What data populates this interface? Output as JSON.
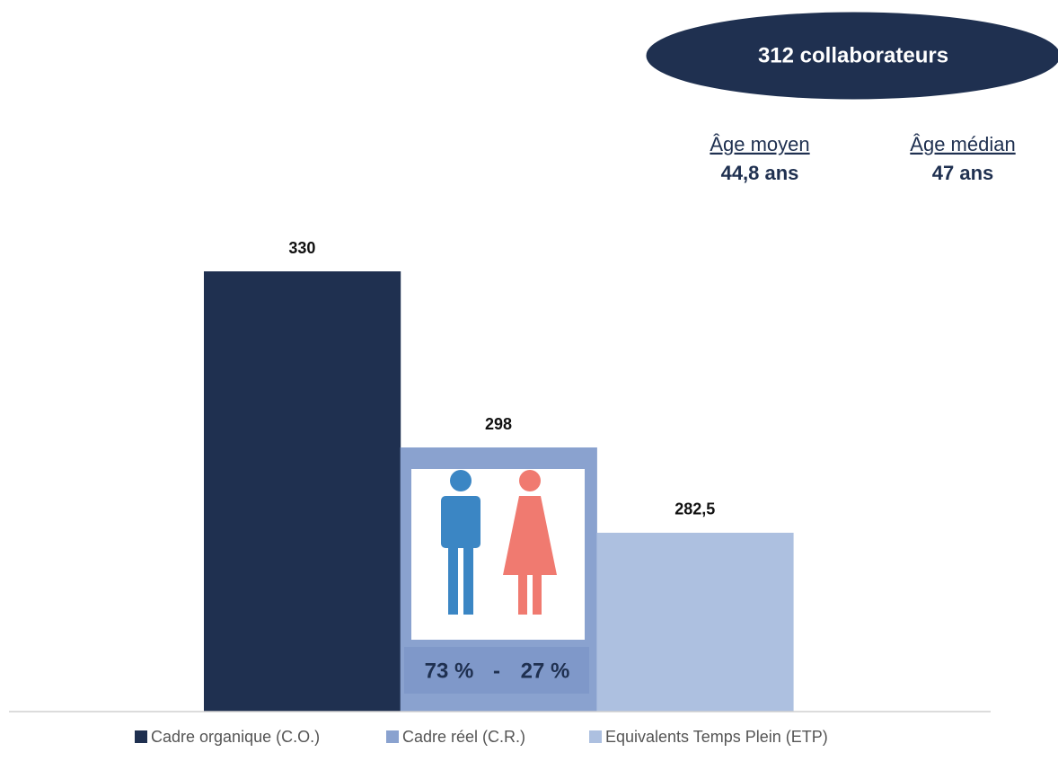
{
  "chart_data": {
    "type": "bar",
    "series": [
      {
        "name": "Cadre organique (C.O.)",
        "color": "#1f3050",
        "values": [
          330
        ],
        "value_labels": [
          "330"
        ]
      },
      {
        "name": "Cadre réel (C.R.)",
        "color": "#8aa2cf",
        "values": [
          298
        ],
        "value_labels": [
          "298"
        ]
      },
      {
        "name": "Equivalents Temps Plein (ETP)",
        "color": "#adc0e0",
        "values": [
          282.5
        ],
        "value_labels": [
          "282,5"
        ]
      }
    ],
    "ylim": [
      250,
      350
    ],
    "badge": "312 collaborateurs",
    "stats": [
      {
        "label": "Âge moyen",
        "value": "44,8 ans"
      },
      {
        "label": "Âge médian",
        "value": "47 ans"
      }
    ],
    "gender": {
      "men": "73 %",
      "separator": "-",
      "women": "27 %"
    }
  }
}
